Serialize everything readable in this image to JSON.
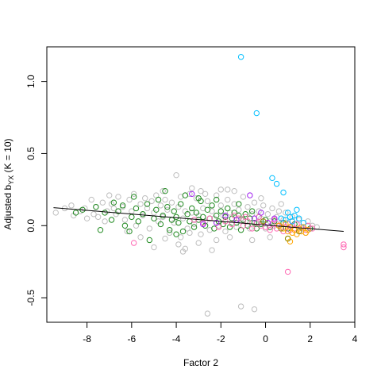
{
  "chart_data": {
    "type": "scatter",
    "title": "",
    "xlabel": "Factor 2",
    "ylabel_main": "Adjusted b",
    "ylabel_sub": "YX",
    "ylabel_tail": " (K = 10)",
    "xlim": [
      -9.8,
      4.0
    ],
    "ylim": [
      -0.67,
      1.24
    ],
    "x_ticks": [
      -8,
      -6,
      -4,
      -2,
      0,
      2,
      4
    ],
    "x_tick_labels": [
      "-8",
      "-6",
      "-4",
      "-2",
      "0",
      "2",
      "4"
    ],
    "y_ticks": [
      -0.5,
      0.0,
      0.5,
      1.0
    ],
    "y_tick_labels": [
      "-0.5",
      "0.0",
      "0.5",
      "1.0"
    ],
    "grid": false,
    "legend": "none",
    "marker": "open-circle",
    "trend_line": {
      "x": [
        -9.5,
        3.5
      ],
      "y": [
        0.125,
        -0.04
      ],
      "color": "#000000"
    },
    "series": [
      {
        "color": "#bebebe",
        "points": [
          [
            -9.4,
            0.09
          ],
          [
            -9.0,
            0.12
          ],
          [
            -8.7,
            0.14
          ],
          [
            -8.6,
            0.07
          ],
          [
            -8.3,
            0.1
          ],
          [
            -8.1,
            0.12
          ],
          [
            -7.8,
            0.18
          ],
          [
            -7.6,
            0.13
          ],
          [
            -7.5,
            0.06
          ],
          [
            -7.3,
            0.16
          ],
          [
            -7.1,
            0.1
          ],
          [
            -7.0,
            0.21
          ],
          [
            -6.9,
            0.15
          ],
          [
            -6.7,
            0.08
          ],
          [
            -6.6,
            0.2
          ],
          [
            -6.4,
            0.13
          ],
          [
            -6.3,
            0.04
          ],
          [
            -6.1,
            0.18
          ],
          [
            -6.0,
            0.1
          ],
          [
            -5.9,
            0.22
          ],
          [
            -5.8,
            0.0
          ],
          [
            -5.6,
            0.15
          ],
          [
            -5.5,
            0.07
          ],
          [
            -5.4,
            0.19
          ],
          [
            -5.3,
            0.12
          ],
          [
            -5.2,
            -0.02
          ],
          [
            -5.1,
            0.17
          ],
          [
            -5.0,
            0.09
          ],
          [
            -4.9,
            0.21
          ],
          [
            -4.8,
            0.03
          ],
          [
            -4.7,
            0.14
          ],
          [
            -4.6,
            0.06
          ],
          [
            -4.5,
            0.18
          ],
          [
            -4.4,
            0.11
          ],
          [
            -4.3,
            -0.05
          ],
          [
            -4.2,
            0.16
          ],
          [
            -4.1,
            0.02
          ],
          [
            -4.0,
            0.35
          ],
          [
            -3.9,
            0.13
          ],
          [
            -3.8,
            0.2
          ],
          [
            -3.8,
            -0.08
          ],
          [
            -3.7,
            0.05
          ],
          [
            -3.6,
            0.1
          ],
          [
            -3.5,
            -0.02
          ],
          [
            -3.4,
            0.22
          ],
          [
            -3.3,
            0.09
          ],
          [
            -3.2,
            0.01
          ],
          [
            -3.1,
            0.19
          ],
          [
            -3.0,
            0.07
          ],
          [
            -2.9,
            0.24
          ],
          [
            -2.9,
            -0.06
          ],
          [
            -2.8,
            0.12
          ],
          [
            -2.7,
            0.03
          ],
          [
            -2.6,
            0.17
          ],
          [
            -2.5,
            -0.03
          ],
          [
            -2.4,
            0.1
          ],
          [
            -2.3,
            0.05
          ],
          [
            -2.2,
            0.21
          ],
          [
            -2.1,
            0.0
          ],
          [
            -2.0,
            0.14
          ],
          [
            -1.9,
            0.07
          ],
          [
            -1.8,
            -0.04
          ],
          [
            -1.7,
            0.18
          ],
          [
            -1.6,
            0.09
          ],
          [
            -1.5,
            0.02
          ],
          [
            -1.4,
            0.15
          ],
          [
            -1.3,
            -0.01
          ],
          [
            -1.2,
            0.11
          ],
          [
            -1.1,
            0.05
          ],
          [
            -1.0,
            0.2
          ],
          [
            -0.9,
            0.03
          ],
          [
            -0.8,
            0.13
          ],
          [
            -0.7,
            -0.02
          ],
          [
            -0.6,
            0.08
          ],
          [
            -0.5,
            0.16
          ],
          [
            -0.4,
            0.01
          ],
          [
            -0.3,
            0.1
          ],
          [
            -0.2,
            0.05
          ],
          [
            -0.1,
            0.14
          ],
          [
            0.0,
            -0.02
          ],
          [
            0.1,
            0.08
          ],
          [
            0.2,
            0.03
          ],
          [
            0.3,
            0.12
          ],
          [
            0.4,
            0.0
          ],
          [
            0.5,
            0.06
          ],
          [
            0.6,
            0.1
          ],
          [
            0.7,
            -0.01
          ],
          [
            0.8,
            0.04
          ],
          [
            0.9,
            0.09
          ],
          [
            1.0,
            0.02
          ],
          [
            1.1,
            -0.03
          ],
          [
            1.2,
            0.06
          ],
          [
            1.3,
            0.01
          ],
          [
            1.5,
            0.04
          ],
          [
            1.7,
            -0.02
          ],
          [
            1.9,
            0.03
          ],
          [
            2.1,
            0.0
          ],
          [
            2.3,
            -0.01
          ],
          [
            -3.7,
            -0.18
          ],
          [
            -3.6,
            -0.16
          ],
          [
            -3.9,
            -0.13
          ],
          [
            -5.0,
            -0.15
          ],
          [
            -2.4,
            -0.17
          ],
          [
            -2.6,
            -0.61
          ],
          [
            -1.1,
            -0.56
          ],
          [
            -0.5,
            -0.58
          ],
          [
            -4.5,
            -0.09
          ],
          [
            -6.2,
            -0.04
          ],
          [
            -3.3,
            0.26
          ],
          [
            -2.0,
            0.25
          ],
          [
            -1.4,
            0.24
          ],
          [
            -0.6,
            -0.1
          ],
          [
            0.2,
            -0.08
          ],
          [
            -7.2,
            0.03
          ],
          [
            -8.0,
            0.05
          ],
          [
            -1.6,
            -0.08
          ],
          [
            -2.2,
            -0.1
          ],
          [
            -4.6,
            0.24
          ],
          [
            -5.6,
            -0.08
          ],
          [
            -3.0,
            -0.12
          ],
          [
            1.8,
            -0.05
          ],
          [
            0.7,
            0.15
          ],
          [
            -0.2,
            0.19
          ],
          [
            -1.7,
            0.25
          ],
          [
            -3.4,
            -0.05
          ],
          [
            -6.8,
            0.12
          ],
          [
            -7.7,
            0.08
          ],
          [
            -2.7,
            0.22
          ]
        ]
      },
      {
        "color": "#228b22",
        "points": [
          [
            -8.5,
            0.09
          ],
          [
            -8.2,
            0.11
          ],
          [
            -7.6,
            0.13
          ],
          [
            -7.4,
            -0.03
          ],
          [
            -7.2,
            0.09
          ],
          [
            -6.9,
            0.04
          ],
          [
            -6.8,
            0.16
          ],
          [
            -6.6,
            0.1
          ],
          [
            -6.3,
            0.0
          ],
          [
            -6.0,
            0.06
          ],
          [
            -5.8,
            0.12
          ],
          [
            -5.7,
            0.03
          ],
          [
            -5.5,
            0.08
          ],
          [
            -5.3,
            0.15
          ],
          [
            -5.2,
            -0.1
          ],
          [
            -5.0,
            0.05
          ],
          [
            -4.9,
            0.11
          ],
          [
            -4.7,
            0.01
          ],
          [
            -4.6,
            0.07
          ],
          [
            -4.5,
            0.24
          ],
          [
            -4.4,
            0.13
          ],
          [
            -4.3,
            -0.03
          ],
          [
            -4.2,
            0.04
          ],
          [
            -4.1,
            0.1
          ],
          [
            -4.0,
            0.06
          ],
          [
            -3.9,
            0.02
          ],
          [
            -3.8,
            0.15
          ],
          [
            -3.7,
            -0.04
          ],
          [
            -3.6,
            0.21
          ],
          [
            -3.5,
            0.08
          ],
          [
            -3.4,
            0.03
          ],
          [
            -3.3,
            0.12
          ],
          [
            -3.2,
            -0.01
          ],
          [
            -3.1,
            0.09
          ],
          [
            -3.0,
            0.04
          ],
          [
            -2.9,
            0.17
          ],
          [
            -2.8,
            0.06
          ],
          [
            -2.7,
            0.0
          ],
          [
            -2.6,
            0.11
          ],
          [
            -2.5,
            0.05
          ],
          [
            -2.4,
            0.14
          ],
          [
            -2.3,
            -0.02
          ],
          [
            -2.2,
            0.07
          ],
          [
            -2.1,
            0.03
          ],
          [
            -2.0,
            0.1
          ],
          [
            -1.9,
            0.01
          ],
          [
            -1.8,
            0.06
          ],
          [
            -1.7,
            0.12
          ],
          [
            -1.6,
            -0.01
          ],
          [
            -1.5,
            0.05
          ],
          [
            -1.4,
            0.09
          ],
          [
            -1.3,
            0.02
          ],
          [
            -1.2,
            0.07
          ],
          [
            -1.1,
            -0.03
          ],
          [
            -1.0,
            0.04
          ],
          [
            -0.9,
            0.08
          ],
          [
            -0.8,
            0.0
          ],
          [
            -0.7,
            0.05
          ],
          [
            -0.6,
            0.1
          ],
          [
            -0.5,
            0.02
          ],
          [
            -0.4,
            -0.02
          ],
          [
            -0.3,
            0.06
          ],
          [
            -0.2,
            0.01
          ],
          [
            0.0,
            0.04
          ],
          [
            0.2,
            -0.01
          ],
          [
            0.4,
            0.03
          ],
          [
            0.6,
            0.0
          ],
          [
            0.8,
            0.02
          ],
          [
            1.0,
            -0.02
          ],
          [
            1.3,
            0.01
          ],
          [
            1.6,
            -0.01
          ],
          [
            2.0,
            -0.02
          ],
          [
            -6.4,
            0.14
          ],
          [
            -5.9,
            0.2
          ],
          [
            -4.8,
            0.18
          ],
          [
            -3.0,
            0.19
          ],
          [
            -2.2,
            0.18
          ],
          [
            -1.2,
            0.15
          ],
          [
            -6.1,
            -0.04
          ],
          [
            -4.0,
            -0.06
          ]
        ]
      },
      {
        "color": "#ff69b4",
        "points": [
          [
            -5.9,
            -0.12
          ],
          [
            -3.2,
            0.04
          ],
          [
            -2.8,
            0.02
          ],
          [
            -2.5,
            0.05
          ],
          [
            -2.1,
            -0.01
          ],
          [
            -1.8,
            0.03
          ],
          [
            -1.5,
            0.01
          ],
          [
            -1.2,
            0.05
          ],
          [
            -1.0,
            0.0
          ],
          [
            -0.8,
            0.03
          ],
          [
            -0.6,
            -0.02
          ],
          [
            -0.4,
            0.02
          ],
          [
            -0.3,
            0.06
          ],
          [
            -0.2,
            0.0
          ],
          [
            -0.1,
            0.03
          ],
          [
            0.0,
            -0.01
          ],
          [
            0.1,
            0.02
          ],
          [
            0.2,
            -0.03
          ],
          [
            0.3,
            0.01
          ],
          [
            0.4,
            0.04
          ],
          [
            0.5,
            -0.02
          ],
          [
            0.6,
            0.0
          ],
          [
            0.7,
            0.02
          ],
          [
            0.8,
            -0.04
          ],
          [
            0.9,
            -0.01
          ],
          [
            1.0,
            0.01
          ],
          [
            1.1,
            -0.03
          ],
          [
            1.2,
            0.0
          ],
          [
            1.3,
            -0.02
          ],
          [
            1.4,
            0.01
          ],
          [
            1.5,
            -0.04
          ],
          [
            1.6,
            -0.01
          ],
          [
            1.8,
            -0.03
          ],
          [
            1.9,
            0.0
          ],
          [
            2.1,
            -0.02
          ],
          [
            3.5,
            -0.13
          ],
          [
            3.5,
            -0.15
          ],
          [
            1.0,
            -0.32
          ],
          [
            -1.4,
            0.07
          ],
          [
            -0.9,
            0.06
          ]
        ]
      },
      {
        "color": "#a020f0",
        "points": [
          [
            -3.3,
            0.22
          ],
          [
            -2.2,
            0.02
          ],
          [
            -1.8,
            0.07
          ],
          [
            -1.3,
            0.04
          ],
          [
            -0.7,
            0.21
          ],
          [
            -0.5,
            0.05
          ],
          [
            -0.2,
            0.09
          ],
          [
            0.1,
            0.02
          ],
          [
            -2.8,
            0.01
          ],
          [
            0.4,
            0.05
          ]
        ]
      },
      {
        "color": "#00bfff",
        "points": [
          [
            -1.1,
            1.17
          ],
          [
            -0.4,
            0.78
          ],
          [
            0.3,
            0.33
          ],
          [
            0.5,
            0.29
          ],
          [
            0.8,
            0.23
          ],
          [
            1.0,
            0.09
          ],
          [
            1.1,
            0.06
          ],
          [
            1.2,
            0.03
          ],
          [
            1.4,
            0.11
          ],
          [
            1.5,
            0.05
          ],
          [
            1.7,
            0.02
          ],
          [
            0.9,
            0.04
          ],
          [
            1.3,
            0.07
          ],
          [
            0.7,
            0.05
          ]
        ]
      },
      {
        "color": "#ffa500",
        "points": [
          [
            0.8,
            -0.02
          ],
          [
            0.9,
            0.01
          ],
          [
            1.0,
            -0.04
          ],
          [
            1.1,
            -0.01
          ],
          [
            1.2,
            -0.05
          ],
          [
            1.3,
            -0.03
          ],
          [
            1.4,
            -0.06
          ],
          [
            1.5,
            -0.02
          ],
          [
            1.6,
            -0.04
          ],
          [
            1.7,
            -0.01
          ],
          [
            1.8,
            -0.05
          ],
          [
            1.1,
            -0.11
          ],
          [
            1.0,
            -0.09
          ],
          [
            0.6,
            0.0
          ],
          [
            1.9,
            -0.03
          ]
        ]
      },
      {
        "color": "#8b8b00",
        "points": [
          [
            1.0,
            -0.09
          ],
          [
            0.7,
            -0.02
          ],
          [
            1.5,
            -0.04
          ],
          [
            -0.1,
            0.03
          ]
        ]
      }
    ]
  }
}
